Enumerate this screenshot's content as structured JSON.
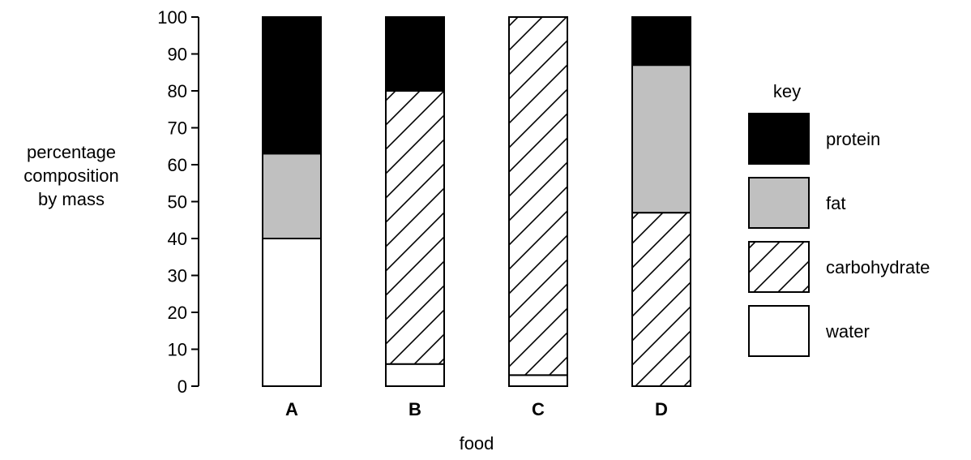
{
  "chart_data": {
    "type": "bar",
    "stacked": true,
    "categories": [
      "A",
      "B",
      "C",
      "D"
    ],
    "series": [
      {
        "name": "water",
        "values": [
          40,
          6,
          3,
          0
        ],
        "fill": "white"
      },
      {
        "name": "carbohydrate",
        "values": [
          0,
          74,
          97,
          47
        ],
        "fill": "hatch"
      },
      {
        "name": "fat",
        "values": [
          23,
          0,
          0,
          40
        ],
        "fill": "grey"
      },
      {
        "name": "protein",
        "values": [
          37,
          20,
          0,
          13
        ],
        "fill": "black"
      }
    ],
    "ylabel": [
      "percentage",
      "composition",
      "by mass"
    ],
    "xlabel": "food",
    "ylim": [
      0,
      100
    ],
    "yticks": [
      0,
      10,
      20,
      30,
      40,
      50,
      60,
      70,
      80,
      90,
      100
    ],
    "grid": false,
    "legend": {
      "title": "key",
      "placement": "right",
      "order": [
        "protein",
        "fat",
        "carbohydrate",
        "water"
      ]
    },
    "colors": {
      "black": "#000000",
      "grey": "#c0c0c0",
      "white": "#ffffff"
    }
  }
}
